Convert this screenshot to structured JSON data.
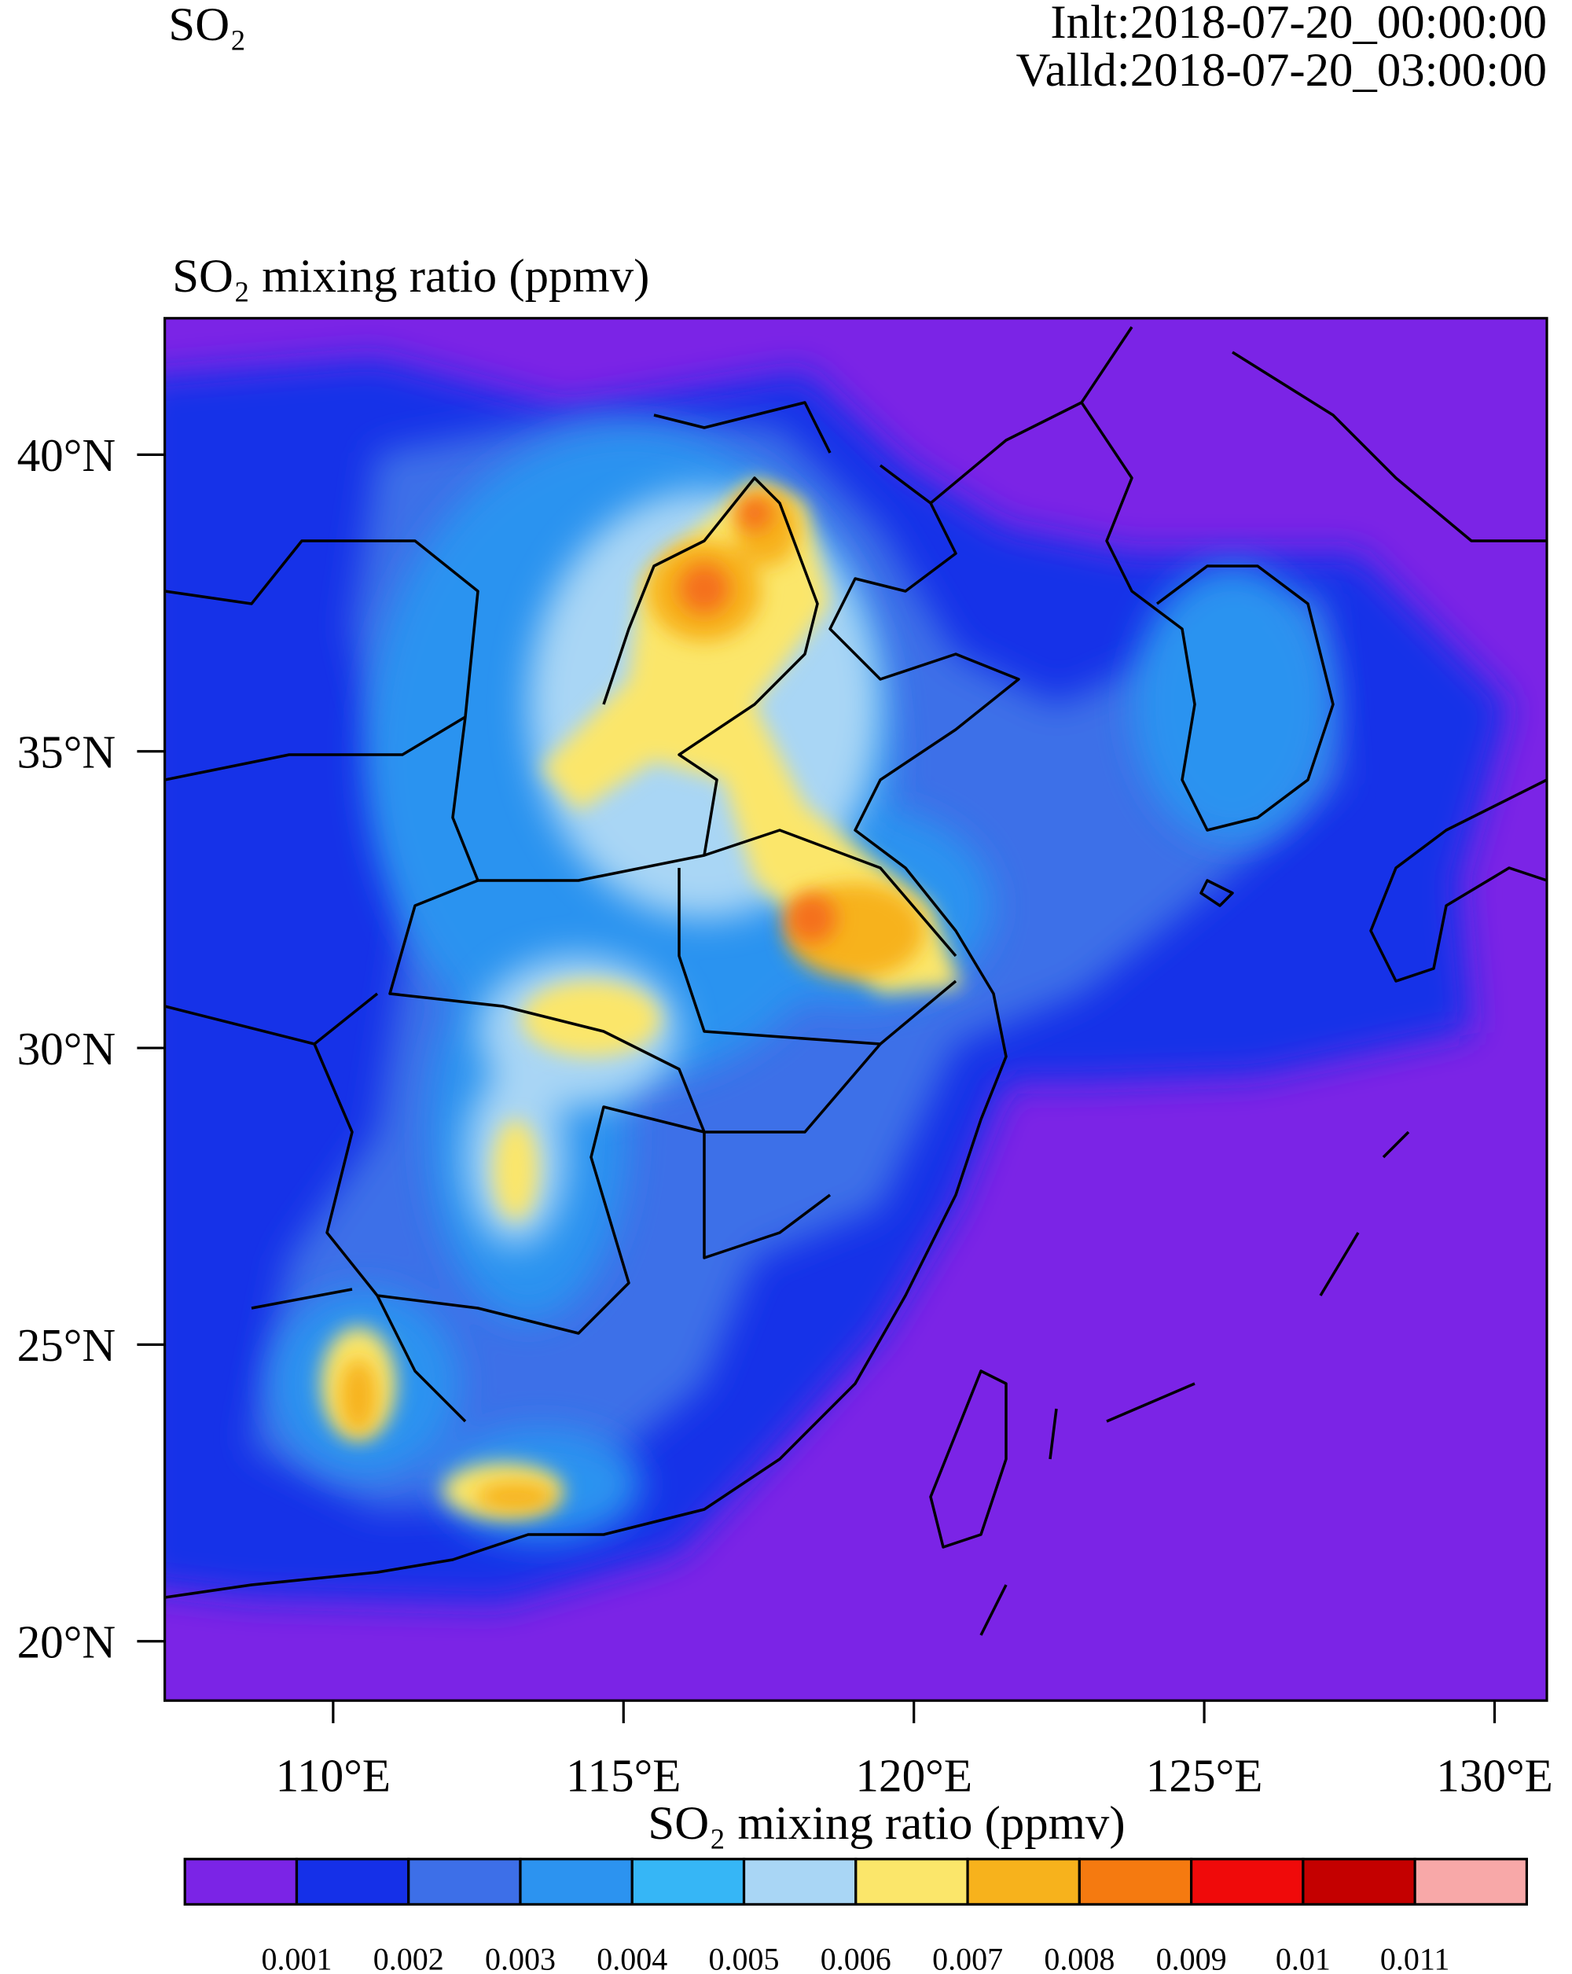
{
  "header": {
    "field": "SO₂",
    "init": "Inlt:2018-07-20_00:00:00",
    "valid": "Valld:2018-07-20_03:00:00"
  },
  "map": {
    "title": "SO₂ mixing ratio (ppmv)",
    "xlim": [
      107.1,
      130.9
    ],
    "ylim": [
      19.0,
      42.3
    ],
    "xticks": [
      {
        "value": 110,
        "label": "110°E"
      },
      {
        "value": 115,
        "label": "115°E"
      },
      {
        "value": 120,
        "label": "120°E"
      },
      {
        "value": 125,
        "label": "125°E"
      },
      {
        "value": 130,
        "label": "130°E"
      }
    ],
    "yticks": [
      {
        "value": 40,
        "label": "40°N"
      },
      {
        "value": 35,
        "label": "35°N"
      },
      {
        "value": 30,
        "label": "30°N"
      },
      {
        "value": 25,
        "label": "25°N"
      },
      {
        "value": 20,
        "label": "20°N"
      }
    ]
  },
  "colorbar": {
    "title": "SO₂ mixing ratio (ppmv)",
    "colors": [
      "#7b24e6",
      "#1530e8",
      "#3d6fe8",
      "#2c93f0",
      "#36b6f6",
      "#a9d6f5",
      "#fbe66a",
      "#f7b21c",
      "#f57a10",
      "#f00a0a",
      "#c40000",
      "#f8a8a8"
    ],
    "levels": [
      0.001,
      0.002,
      0.003,
      0.004,
      0.005,
      0.006,
      0.007,
      0.008,
      0.009,
      0.01,
      0.011
    ]
  }
}
